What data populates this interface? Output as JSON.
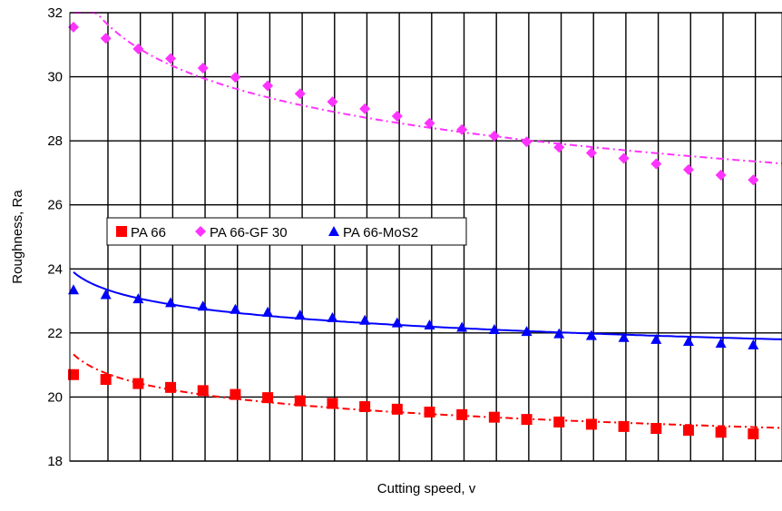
{
  "chart_data": {
    "type": "scatter",
    "xlabel": "Cutting speed, v",
    "ylabel": "Roughness, Ra",
    "ylim": [
      18,
      32
    ],
    "xlim": [
      0,
      22
    ],
    "yticks": [
      18,
      20,
      22,
      24,
      26,
      28,
      30,
      32
    ],
    "grid": true,
    "legend_position": "middle-left",
    "x": [
      0,
      1,
      2,
      3,
      4,
      5,
      6,
      7,
      8,
      9,
      10,
      11,
      12,
      13,
      14,
      15,
      16,
      17,
      18,
      19,
      20,
      21
    ],
    "series": [
      {
        "name": "PA 66",
        "marker": "square",
        "color": "#ff0000",
        "trend": "dashdot",
        "values": [
          20.7,
          20.55,
          20.42,
          20.3,
          20.2,
          20.08,
          19.98,
          19.88,
          19.8,
          19.7,
          19.62,
          19.53,
          19.45,
          19.37,
          19.3,
          19.22,
          19.15,
          19.08,
          19.02,
          18.96,
          18.9,
          18.85
        ]
      },
      {
        "name": "PA 66-GF 30",
        "marker": "diamond",
        "color": "#ff33ff",
        "trend": "dashdot",
        "values": [
          31.55,
          31.2,
          30.87,
          30.57,
          30.27,
          29.98,
          29.72,
          29.47,
          29.22,
          29.0,
          28.77,
          28.55,
          28.35,
          28.15,
          27.97,
          27.8,
          27.62,
          27.45,
          27.28,
          27.1,
          26.93,
          26.78
        ]
      },
      {
        "name": "PA 66-MoS2",
        "marker": "triangle",
        "color": "#0000ff",
        "trend": "solid",
        "values": [
          23.35,
          23.2,
          23.07,
          22.95,
          22.84,
          22.74,
          22.65,
          22.56,
          22.48,
          22.4,
          22.32,
          22.25,
          22.18,
          22.11,
          22.05,
          21.98,
          21.92,
          21.86,
          21.8,
          21.74,
          21.68,
          21.63
        ]
      }
    ]
  }
}
